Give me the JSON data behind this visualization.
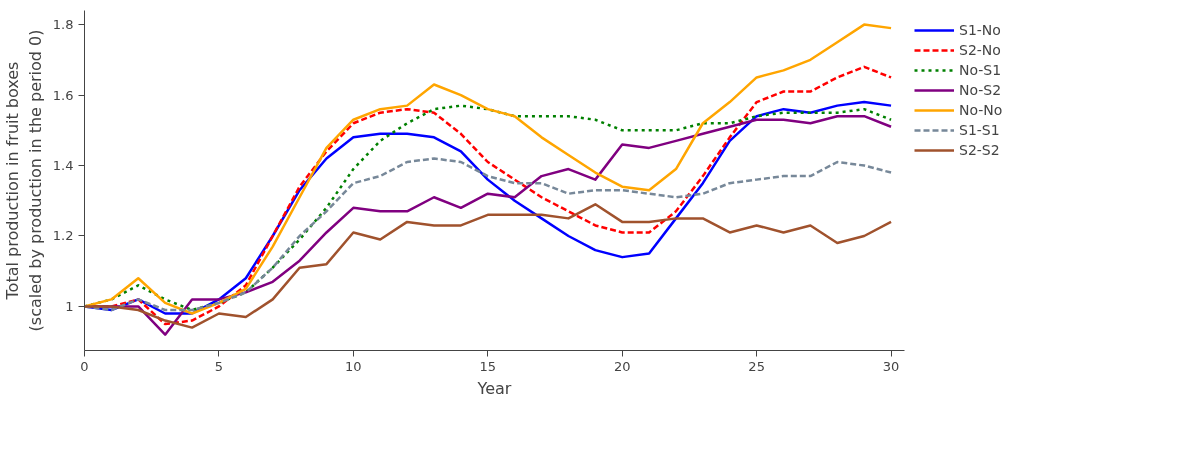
{
  "chart_data": {
    "type": "line",
    "xlabel": "Year",
    "ylabel": "Total production in fruit boxes\n(scaled by production in the period 0)",
    "x": [
      0,
      1,
      2,
      3,
      4,
      5,
      6,
      7,
      8,
      9,
      10,
      11,
      12,
      13,
      14,
      15,
      16,
      17,
      18,
      19,
      20,
      21,
      22,
      23,
      24,
      25,
      26,
      27,
      28,
      29,
      30
    ],
    "xlim": [
      0,
      30.5
    ],
    "xticks": [
      0,
      5,
      10,
      15,
      20,
      25,
      30
    ],
    "ylim": [
      0.875,
      1.84
    ],
    "yticks": [
      1,
      1.2,
      1.4,
      1.6,
      1.8
    ],
    "grid": false,
    "legend": "top right",
    "marker": "none",
    "series": [
      {
        "name": "S1-No",
        "color": "#0000ff",
        "line_style": "solid",
        "values": [
          1,
          0.99,
          1.02,
          0.98,
          0.98,
          1.02,
          1.08,
          1.2,
          1.33,
          1.42,
          1.48,
          1.49,
          1.49,
          1.48,
          1.44,
          1.36,
          1.3,
          1.25,
          1.2,
          1.16,
          1.14,
          1.15,
          1.25,
          1.35,
          1.47,
          1.54,
          1.56,
          1.55,
          1.57,
          1.58,
          1.57
        ]
      },
      {
        "name": "S2-No",
        "color": "#ff0000",
        "line_style": "dashed",
        "values": [
          1,
          1.0,
          1.02,
          0.95,
          0.96,
          1.0,
          1.06,
          1.2,
          1.34,
          1.44,
          1.52,
          1.55,
          1.56,
          1.55,
          1.49,
          1.41,
          1.36,
          1.31,
          1.27,
          1.23,
          1.21,
          1.21,
          1.27,
          1.37,
          1.48,
          1.58,
          1.61,
          1.61,
          1.65,
          1.68,
          1.65
        ]
      },
      {
        "name": "No-S1",
        "color": "#008000",
        "line_style": "dotted",
        "values": [
          1,
          1.02,
          1.06,
          1.02,
          0.99,
          1.01,
          1.04,
          1.11,
          1.19,
          1.28,
          1.39,
          1.47,
          1.52,
          1.56,
          1.57,
          1.56,
          1.54,
          1.54,
          1.54,
          1.53,
          1.5,
          1.5,
          1.5,
          1.52,
          1.52,
          1.54,
          1.55,
          1.55,
          1.55,
          1.56,
          1.53
        ]
      },
      {
        "name": "No-S2",
        "color": "#800080",
        "line_style": "solid",
        "values": [
          1,
          1.0,
          1.0,
          0.92,
          1.02,
          1.02,
          1.04,
          1.07,
          1.13,
          1.21,
          1.28,
          1.27,
          1.27,
          1.31,
          1.28,
          1.32,
          1.31,
          1.37,
          1.39,
          1.36,
          1.46,
          1.45,
          1.47,
          1.49,
          1.51,
          1.53,
          1.53,
          1.52,
          1.54,
          1.54,
          1.51
        ]
      },
      {
        "name": "No-No",
        "color": "#ffa500",
        "line_style": "solid",
        "values": [
          1,
          1.02,
          1.08,
          1.01,
          0.98,
          1.01,
          1.05,
          1.17,
          1.31,
          1.45,
          1.53,
          1.56,
          1.57,
          1.63,
          1.6,
          1.56,
          1.54,
          1.48,
          1.43,
          1.38,
          1.34,
          1.33,
          1.39,
          1.52,
          1.58,
          1.65,
          1.67,
          1.7,
          1.75,
          1.8,
          1.79
        ]
      },
      {
        "name": "S1-S1",
        "color": "#778899",
        "line_style": "dashed",
        "values": [
          1,
          0.99,
          1.02,
          0.99,
          0.99,
          1.01,
          1.04,
          1.11,
          1.2,
          1.27,
          1.35,
          1.37,
          1.41,
          1.42,
          1.41,
          1.37,
          1.35,
          1.35,
          1.32,
          1.33,
          1.33,
          1.32,
          1.31,
          1.32,
          1.35,
          1.36,
          1.37,
          1.37,
          1.41,
          1.4,
          1.38
        ]
      },
      {
        "name": "S2-S2",
        "color": "#a0522d",
        "line_style": "solid",
        "values": [
          1,
          1.0,
          0.99,
          0.96,
          0.94,
          0.98,
          0.97,
          1.02,
          1.11,
          1.12,
          1.21,
          1.19,
          1.24,
          1.23,
          1.23,
          1.26,
          1.26,
          1.26,
          1.25,
          1.29,
          1.24,
          1.24,
          1.25,
          1.25,
          1.21,
          1.23,
          1.21,
          1.23,
          1.18,
          1.2,
          1.24
        ]
      }
    ]
  }
}
